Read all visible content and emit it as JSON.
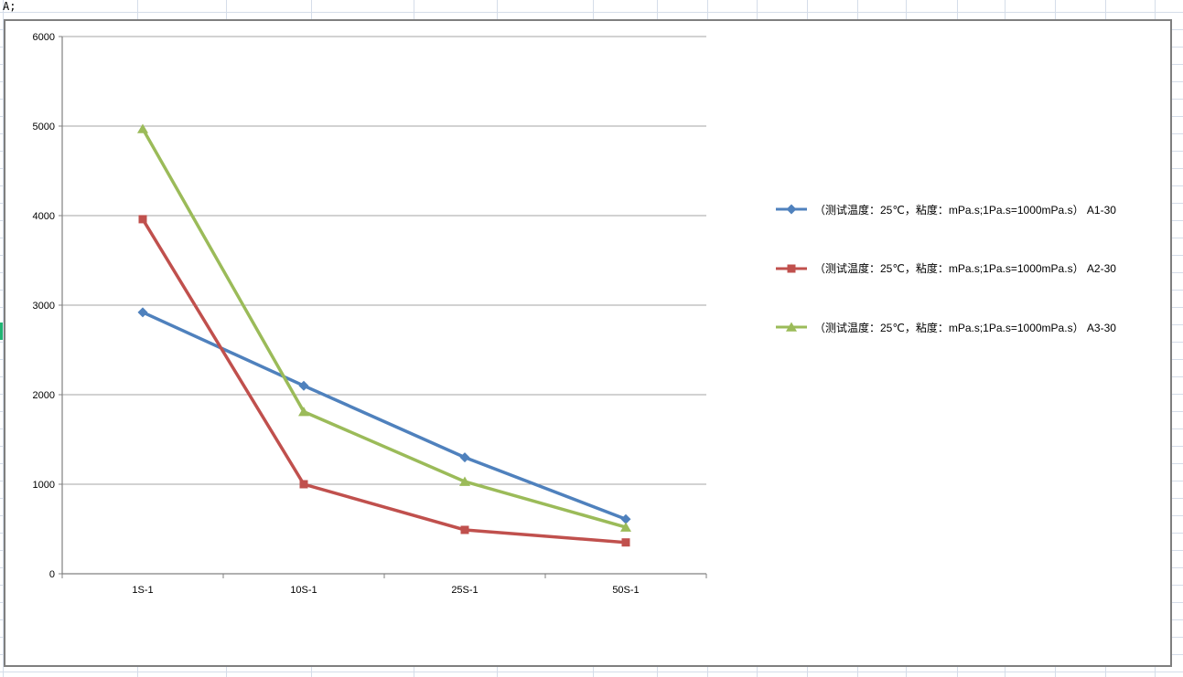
{
  "sheet": {
    "active_cell_text": "A;",
    "grid_color": "#d5dde9",
    "highlight_strip_color": "#21b573"
  },
  "chart_box": {
    "background": "#ffffff",
    "border_color": "#7f7f7f"
  },
  "chart_data": {
    "type": "line",
    "title": "",
    "xlabel": "",
    "ylabel": "",
    "categories": [
      "1S-1",
      "10S-1",
      "25S-1",
      "50S-1"
    ],
    "series": [
      {
        "name": "A1-30",
        "legend_label": "（测试温度：25℃，粘度：mPa.s;1Pa.s=1000mPa.s） A1-30",
        "color": "#4F81BD",
        "marker": "diamond",
        "values": [
          2920,
          2100,
          1300,
          610
        ]
      },
      {
        "name": "A2-30",
        "legend_label": "（测试温度：25℃，粘度：mPa.s;1Pa.s=1000mPa.s） A2-30",
        "color": "#C0504D",
        "marker": "square",
        "values": [
          3960,
          1000,
          490,
          350
        ]
      },
      {
        "name": "A3-30",
        "legend_label": "（测试温度：25℃，粘度：mPa.s;1Pa.s=1000mPa.s） A3-30",
        "color": "#9BBB59",
        "marker": "triangle",
        "values": [
          4970,
          1810,
          1030,
          520
        ]
      }
    ],
    "ylim": [
      0,
      6000
    ],
    "ytick_interval": 1000,
    "ytick_labels": [
      "0",
      "1000",
      "2000",
      "3000",
      "4000",
      "5000",
      "6000"
    ],
    "grid": true,
    "gridline_color": "#a6a6a6",
    "axis_color": "#808080",
    "tick_label_color": "#000000",
    "legend_position": "right"
  }
}
